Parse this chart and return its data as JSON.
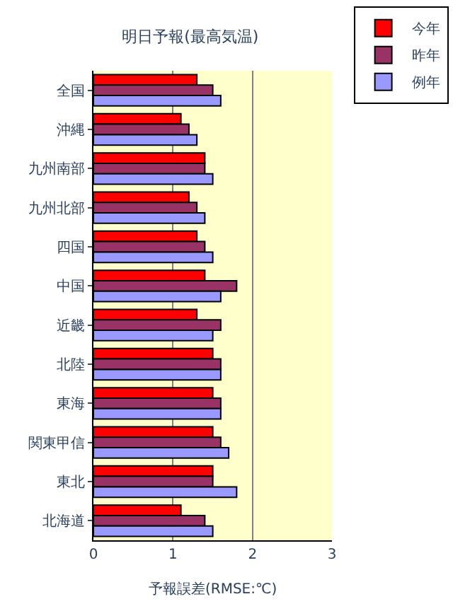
{
  "chart_data": {
    "type": "bar",
    "orientation": "horizontal",
    "title": "明日予報(最高気温)",
    "xlabel": "予報誤差(RMSE:℃)",
    "categories": [
      "全国",
      "沖縄",
      "九州南部",
      "九州北部",
      "四国",
      "中国",
      "近畿",
      "北陸",
      "東海",
      "関東甲信",
      "東北",
      "北海道"
    ],
    "series": [
      {
        "name": "今年",
        "color": "#ff0000",
        "values": [
          1.3,
          1.1,
          1.4,
          1.2,
          1.3,
          1.4,
          1.3,
          1.5,
          1.5,
          1.5,
          1.5,
          1.1
        ]
      },
      {
        "name": "昨年",
        "color": "#993366",
        "values": [
          1.5,
          1.2,
          1.4,
          1.3,
          1.4,
          1.8,
          1.6,
          1.6,
          1.6,
          1.6,
          1.5,
          1.4
        ]
      },
      {
        "name": "例年",
        "color": "#9999ff",
        "values": [
          1.6,
          1.3,
          1.5,
          1.4,
          1.5,
          1.6,
          1.5,
          1.6,
          1.6,
          1.7,
          1.8,
          1.5
        ]
      }
    ],
    "xlim": [
      0,
      3
    ],
    "xticks": [
      0,
      1,
      2,
      3
    ],
    "grid": "x",
    "legend": "top right"
  }
}
